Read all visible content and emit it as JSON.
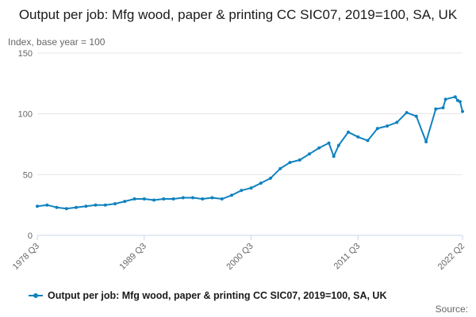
{
  "title": "Output per job: Mfg wood, paper & printing CC SIC07, 2019=100, SA, UK",
  "subtitle": "Index, base year = 100",
  "source_label": "Source:",
  "colors": {
    "series": "#0f82bf",
    "grid": "#e6e6e6",
    "axis": "#ccd6eb"
  },
  "chart_data": {
    "type": "line",
    "title": "Output per job: Mfg wood, paper & printing CC SIC07, 2019=100, SA, UK",
    "ylabel": "Index, base year = 100",
    "xlabel": "",
    "ylim": [
      0,
      150
    ],
    "yticks": [
      0,
      50,
      100,
      150
    ],
    "xticks": [
      "1978 Q3",
      "1989 Q3",
      "2000 Q3",
      "2011 Q3",
      "2022 Q2"
    ],
    "x_range": [
      "1978 Q3",
      "2022 Q2"
    ],
    "legend_position": "bottom",
    "grid": true,
    "series": [
      {
        "name": "Output per job: Mfg wood, paper & printing CC SIC07, 2019=100, SA, UK",
        "x": [
          "1978 Q3",
          "1979 Q3",
          "1980 Q3",
          "1981 Q3",
          "1982 Q3",
          "1983 Q3",
          "1984 Q3",
          "1985 Q3",
          "1986 Q3",
          "1987 Q3",
          "1988 Q3",
          "1989 Q3",
          "1990 Q3",
          "1991 Q3",
          "1992 Q3",
          "1993 Q3",
          "1994 Q3",
          "1995 Q3",
          "1996 Q3",
          "1997 Q3",
          "1998 Q3",
          "1999 Q3",
          "2000 Q3",
          "2001 Q3",
          "2002 Q3",
          "2003 Q3",
          "2004 Q3",
          "2005 Q3",
          "2006 Q3",
          "2007 Q3",
          "2008 Q3",
          "2009 Q1",
          "2009 Q3",
          "2010 Q3",
          "2011 Q3",
          "2012 Q3",
          "2013 Q3",
          "2014 Q3",
          "2015 Q3",
          "2016 Q3",
          "2017 Q3",
          "2018 Q3",
          "2019 Q3",
          "2020 Q2",
          "2020 Q3",
          "2021 Q3",
          "2021 Q4",
          "2022 Q1",
          "2022 Q2"
        ],
        "values": [
          24,
          25,
          23,
          22,
          23,
          24,
          25,
          25,
          26,
          28,
          30,
          30,
          29,
          30,
          30,
          31,
          31,
          30,
          31,
          30,
          33,
          37,
          39,
          43,
          47,
          55,
          60,
          62,
          67,
          72,
          76,
          65,
          74,
          85,
          81,
          78,
          88,
          90,
          93,
          101,
          98,
          77,
          104,
          105,
          112,
          114,
          111,
          110,
          102
        ]
      }
    ]
  }
}
